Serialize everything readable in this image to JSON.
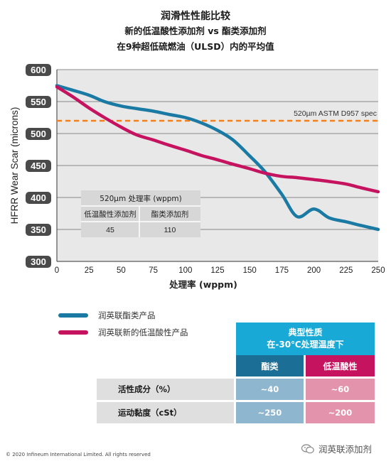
{
  "header": {
    "title": "润滑性性能比较",
    "subtitle": "新的低温酸性添加剂 vs 酯类添加剂",
    "subtitle2": "在9种超低硫燃油（ULSD）内的平均值"
  },
  "chart_data": {
    "type": "line",
    "xlabel": "处理率 (wppm)",
    "ylabel": "HFRR Wear Scar (microns)",
    "xlim": [
      0,
      250
    ],
    "ylim": [
      300,
      600
    ],
    "x_ticks": [
      0,
      25,
      50,
      75,
      100,
      125,
      150,
      175,
      200,
      225,
      250
    ],
    "y_ticks": [
      300,
      350,
      400,
      450,
      500,
      550,
      600
    ],
    "grid": "horizontal",
    "series": [
      {
        "name": "润英联酯类产品",
        "color": "#1a7aa3",
        "x": [
          0,
          12,
          25,
          37,
          50,
          62,
          75,
          87,
          100,
          112,
          125,
          137,
          150,
          162,
          175,
          187,
          200,
          212,
          225,
          237,
          250
        ],
        "values": [
          575,
          568,
          560,
          550,
          543,
          539,
          535,
          530,
          525,
          517,
          505,
          490,
          465,
          440,
          405,
          370,
          382,
          368,
          362,
          356,
          350
        ]
      },
      {
        "name": "润英联新的低温酸性产品",
        "color": "#c6135f",
        "x": [
          0,
          12,
          25,
          37,
          50,
          62,
          75,
          87,
          100,
          112,
          125,
          137,
          150,
          162,
          175,
          187,
          200,
          212,
          225,
          237,
          250
        ],
        "values": [
          573,
          558,
          540,
          525,
          510,
          498,
          490,
          482,
          474,
          466,
          459,
          452,
          445,
          438,
          433,
          431,
          428,
          425,
          421,
          415,
          409
        ]
      }
    ],
    "reference_line": {
      "value": 520,
      "label": "520µm ASTM D957 spec",
      "color": "#f08020"
    },
    "inset_table": {
      "header": "520µm  处理率   (wppm)",
      "columns": [
        "低温酸性添加剂",
        "酯类添加剂"
      ],
      "values": [
        "45",
        "110"
      ]
    }
  },
  "properties_table": {
    "header_line1": "典型性质",
    "header_line2": "在-30℃处理温度下",
    "col_a": "酯类",
    "col_b": "低温酸性",
    "rows": [
      {
        "label": "活性成分（%）",
        "a": "~40",
        "b": "~60"
      },
      {
        "label": "运动黏度（cSt）",
        "a": "~250",
        "b": "~200"
      }
    ]
  },
  "footer": {
    "copyright": "© 2020 Infineum International Limited. All rights reserved",
    "wechat": "润英联添加剂"
  }
}
